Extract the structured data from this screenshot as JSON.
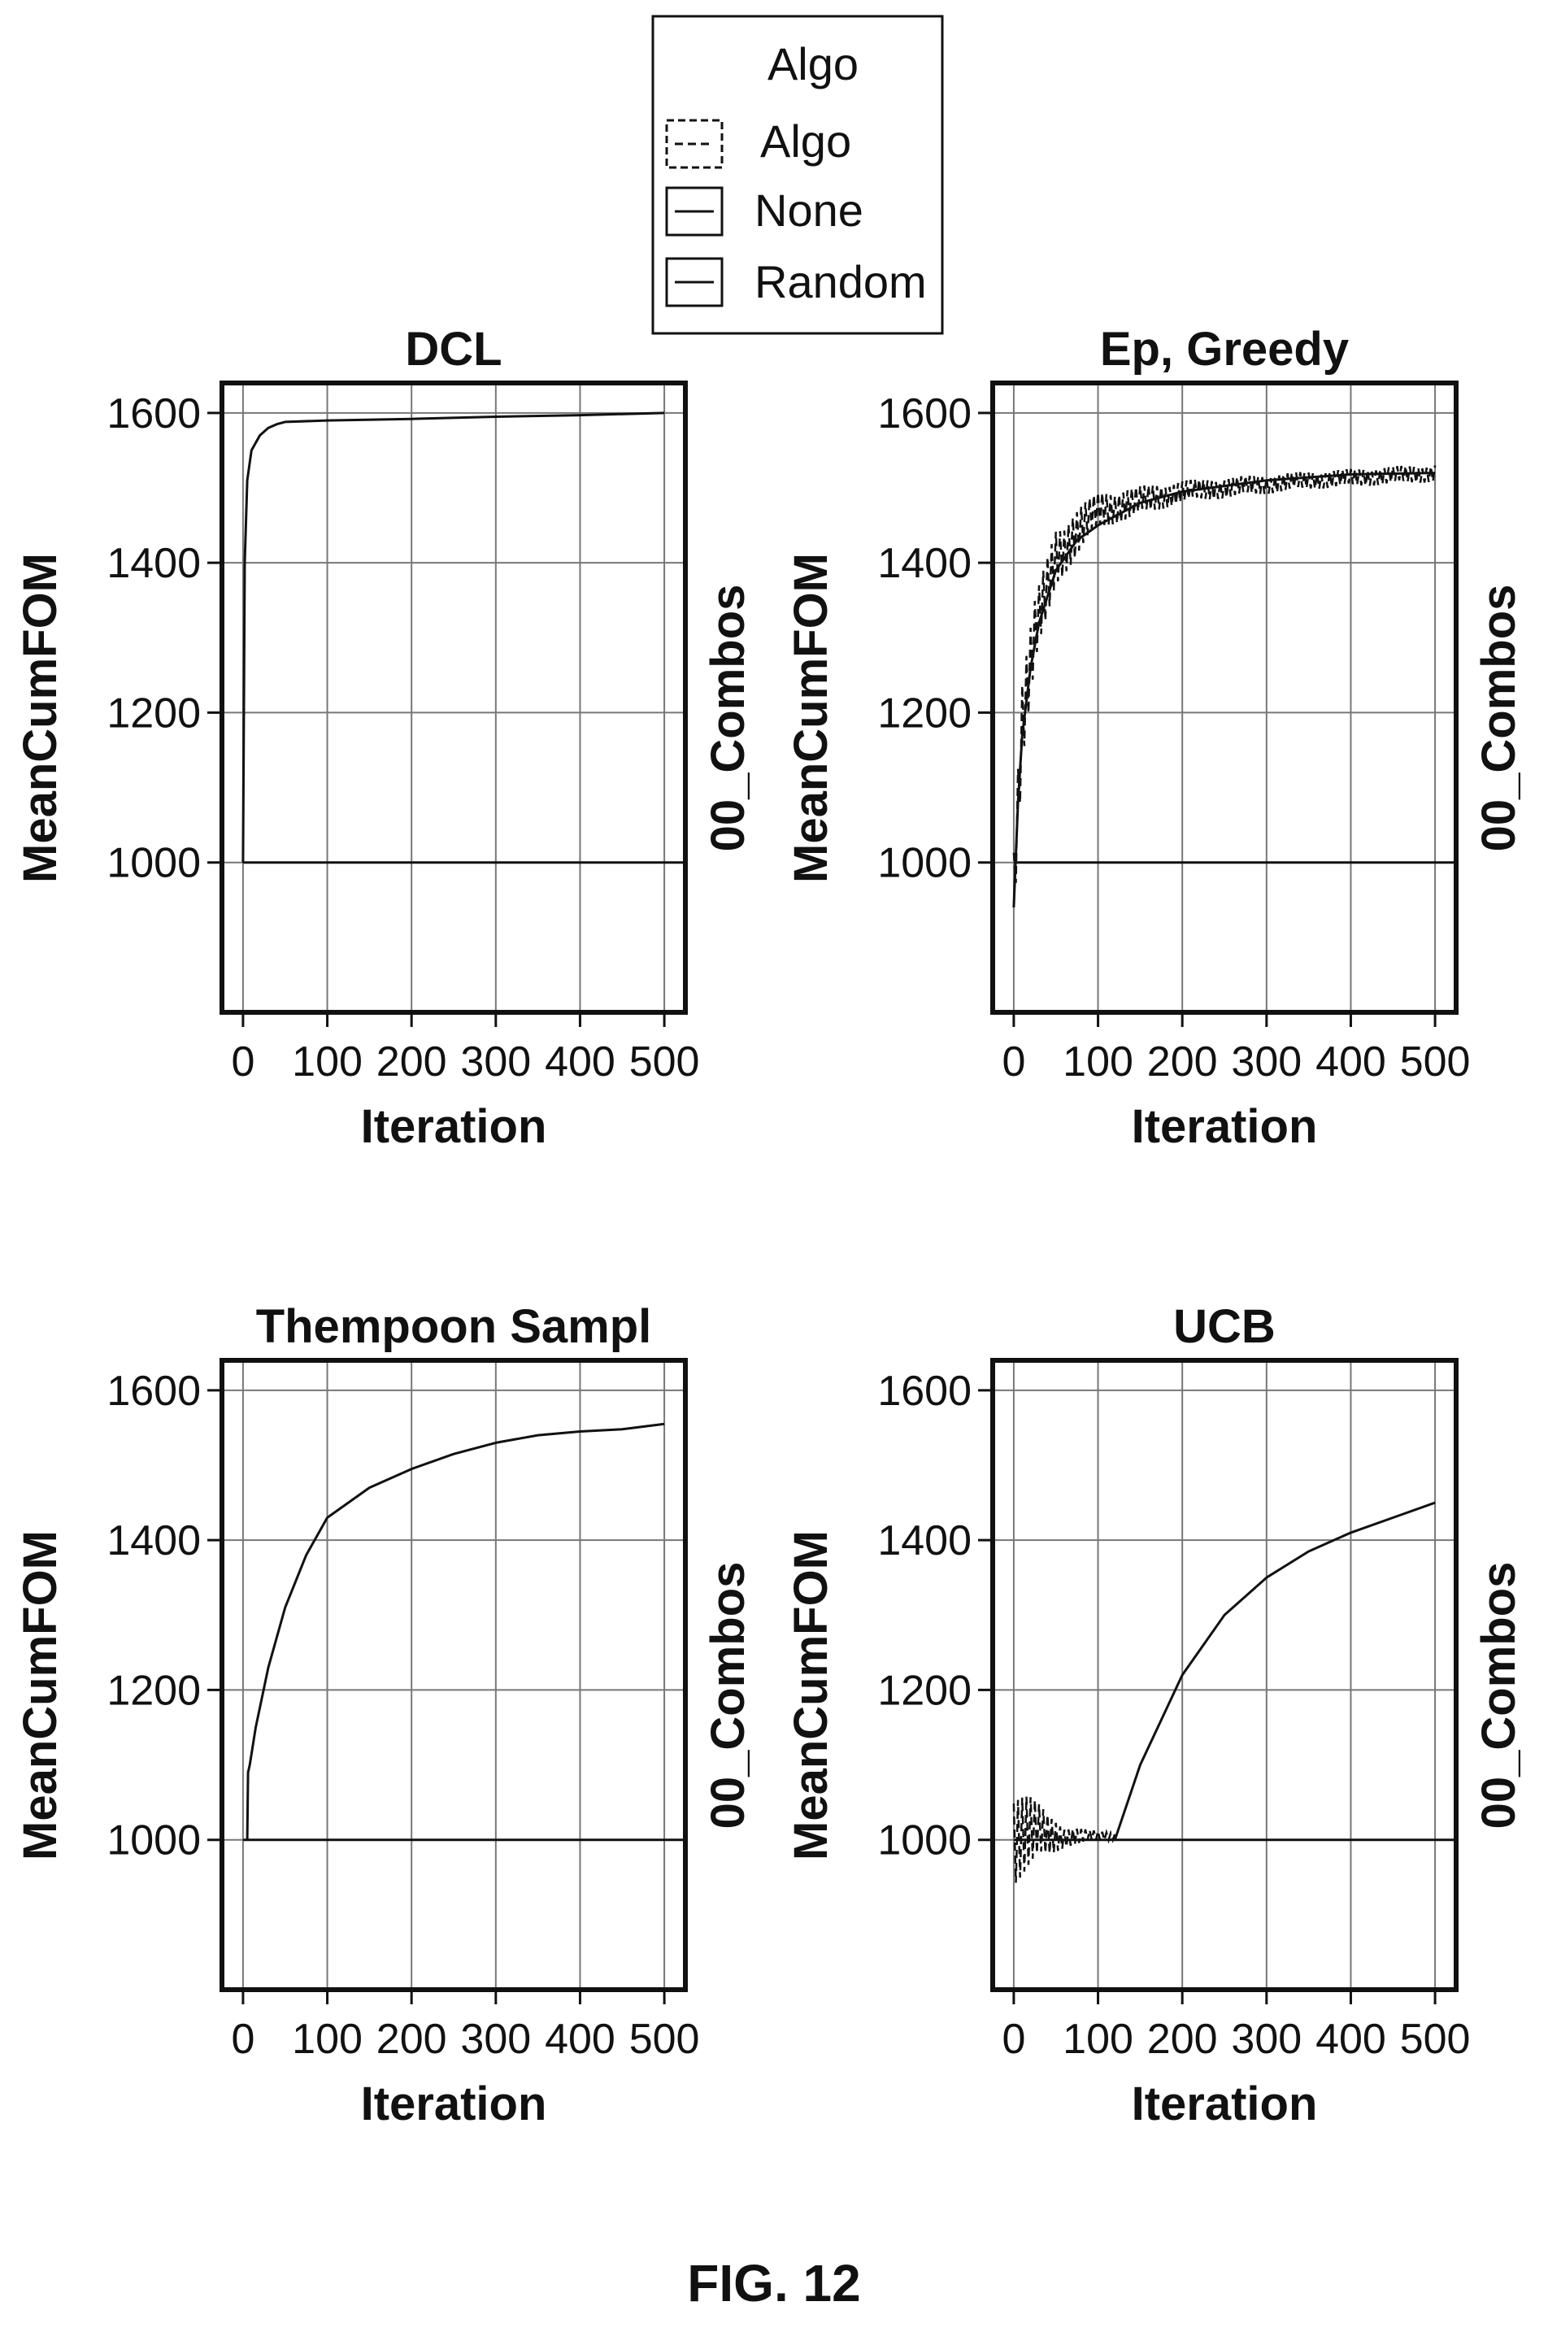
{
  "legend": {
    "title": "Algo",
    "items": [
      {
        "label": "Algo",
        "style": "dashed"
      },
      {
        "label": "None",
        "style": "solid"
      },
      {
        "label": "Random",
        "style": "solid"
      }
    ]
  },
  "figure_caption": "FIG. 12",
  "chart_data": [
    {
      "type": "line",
      "title": "DCL",
      "xlabel": "Iteration",
      "ylabel": "MeanCumFOM",
      "right_label": "00_Combos",
      "xlim": [
        -25,
        525
      ],
      "ylim": [
        800,
        1640
      ],
      "xticks": [
        0,
        100,
        200,
        300,
        400,
        500
      ],
      "yticks": [
        1000,
        1200,
        1400,
        1600
      ],
      "grid": true,
      "reference_line": 1000,
      "series": [
        {
          "style": "solid",
          "x": [
            0,
            2,
            5,
            10,
            20,
            30,
            40,
            50,
            100,
            200,
            300,
            400,
            500
          ],
          "y": [
            1000,
            1400,
            1510,
            1550,
            1570,
            1580,
            1585,
            1588,
            1590,
            1592,
            1595,
            1597,
            1600
          ]
        }
      ]
    },
    {
      "type": "line",
      "title": "Ep, Greedy",
      "xlabel": "Iteration",
      "ylabel": "MeanCumFOM",
      "right_label": "00_Combos",
      "xlim": [
        -25,
        525
      ],
      "ylim": [
        800,
        1640
      ],
      "xticks": [
        0,
        100,
        200,
        300,
        400,
        500
      ],
      "yticks": [
        1000,
        1200,
        1400,
        1600
      ],
      "grid": true,
      "reference_line": 1000,
      "series": [
        {
          "style": "solid",
          "x": [
            0,
            5,
            10,
            20,
            30,
            50,
            75,
            100,
            150,
            200,
            300,
            400,
            500
          ],
          "y": [
            940,
            1080,
            1170,
            1260,
            1320,
            1390,
            1430,
            1450,
            1480,
            1495,
            1510,
            1518,
            1520
          ]
        },
        {
          "style": "dashed",
          "noisy": true,
          "noise_amp": [
            60,
            60,
            50,
            40,
            25,
            15,
            12,
            12
          ],
          "x": [
            0,
            10,
            25,
            50,
            100,
            200,
            350,
            500
          ],
          "y": [
            980,
            1190,
            1300,
            1410,
            1470,
            1495,
            1510,
            1520
          ]
        }
      ]
    },
    {
      "type": "line",
      "title": "Thempoon Sampl",
      "xlabel": "Iteration",
      "ylabel": "MeanCumFOM",
      "right_label": "00_Combos",
      "xlim": [
        -25,
        525
      ],
      "ylim": [
        800,
        1640
      ],
      "xticks": [
        0,
        100,
        200,
        300,
        400,
        500
      ],
      "yticks": [
        1000,
        1200,
        1400,
        1600
      ],
      "grid": true,
      "reference_line": 1000,
      "series": [
        {
          "style": "solid",
          "x": [
            5,
            6,
            8,
            15,
            30,
            50,
            75,
            100,
            150,
            200,
            250,
            300,
            350,
            400,
            450,
            500
          ],
          "y": [
            1000,
            1090,
            1100,
            1150,
            1230,
            1310,
            1380,
            1430,
            1470,
            1495,
            1515,
            1530,
            1540,
            1545,
            1548,
            1555
          ]
        }
      ]
    },
    {
      "type": "line",
      "title": "UCB",
      "xlabel": "Iteration",
      "ylabel": "MeanCumFOM",
      "right_label": "00_Combos",
      "xlim": [
        -25,
        525
      ],
      "ylim": [
        800,
        1640
      ],
      "xticks": [
        0,
        100,
        200,
        300,
        400,
        500
      ],
      "yticks": [
        1000,
        1200,
        1400,
        1600
      ],
      "grid": true,
      "reference_line": 1000,
      "series": [
        {
          "style": "solid",
          "x": [
            120,
            150,
            200,
            250,
            300,
            350,
            400,
            450,
            500
          ],
          "y": [
            1000,
            1100,
            1220,
            1300,
            1350,
            1385,
            1410,
            1430,
            1450
          ]
        },
        {
          "style": "dashed",
          "noisy": true,
          "noise_amp": [
            70,
            60,
            50,
            30,
            15,
            8,
            5
          ],
          "x": [
            0,
            10,
            20,
            40,
            60,
            90,
            120
          ],
          "y": [
            1010,
            1010,
            1010,
            1005,
            1005,
            1005,
            1005
          ]
        }
      ]
    }
  ]
}
